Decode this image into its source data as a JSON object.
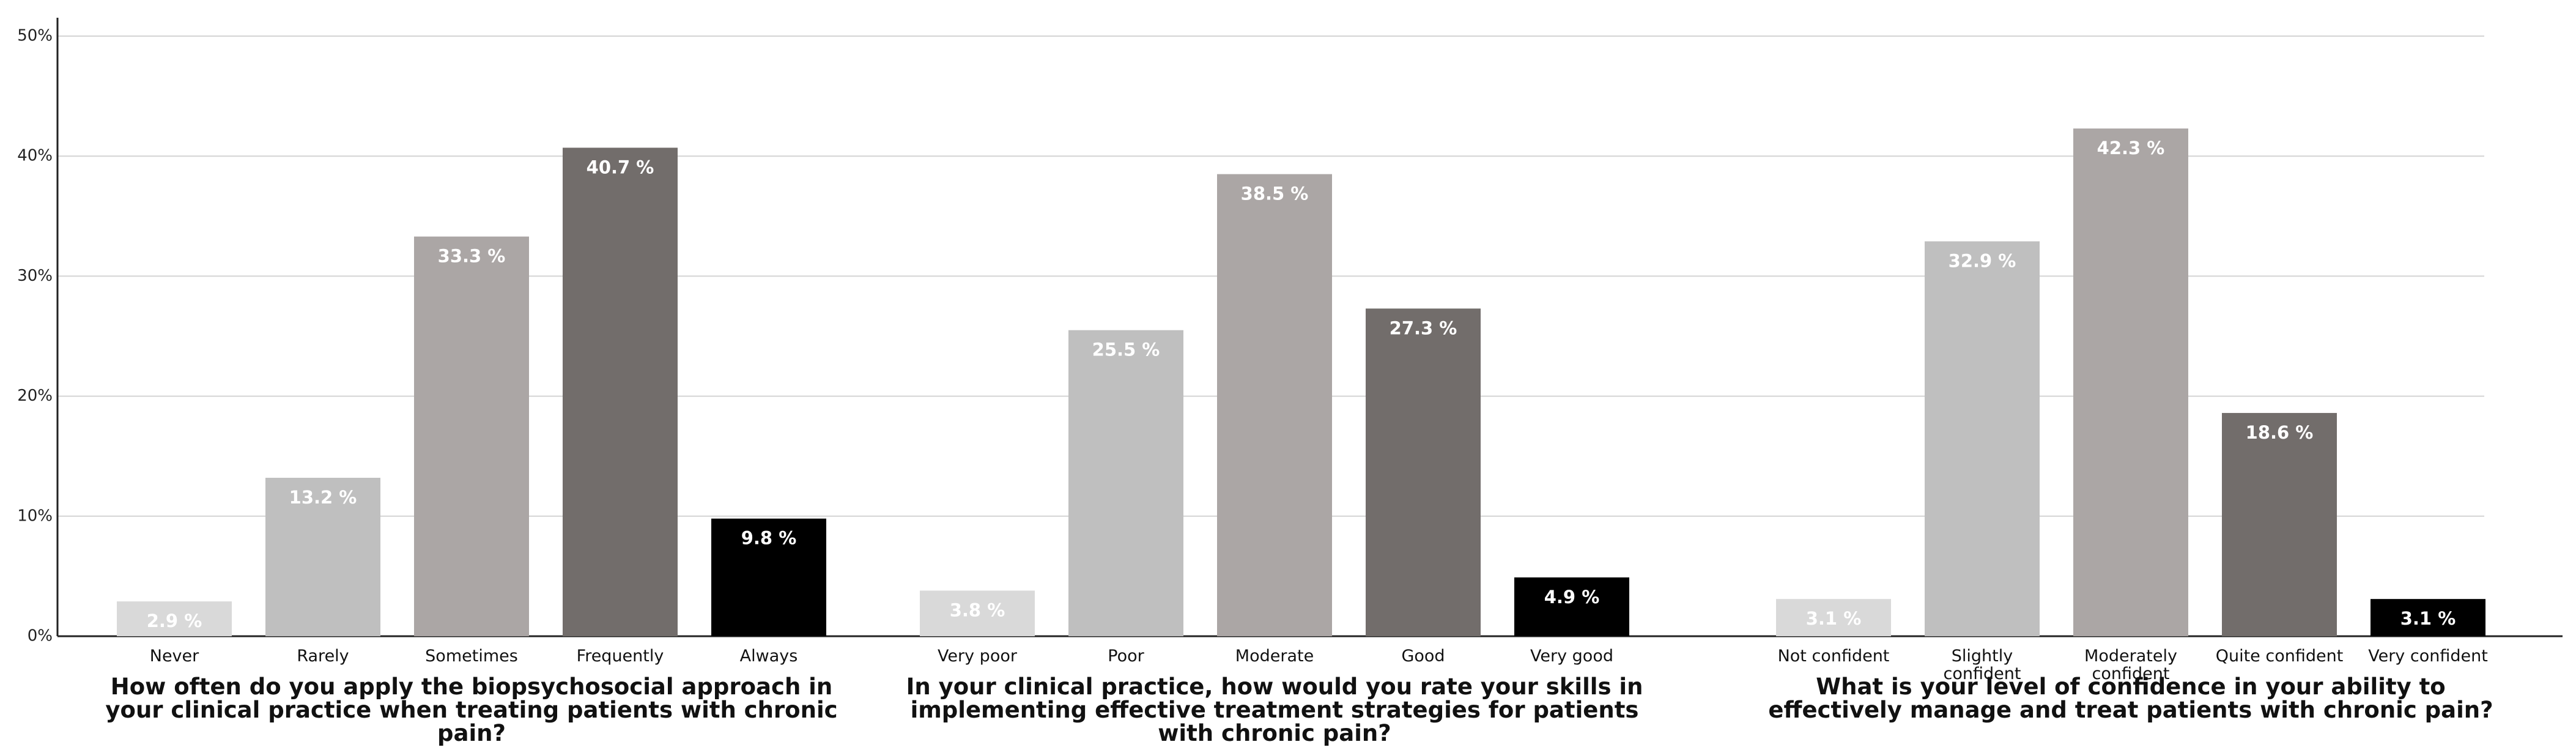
{
  "chart_data": {
    "type": "bar",
    "ylim": [
      0,
      50
    ],
    "yticks": [
      {
        "value": 0,
        "label": "0%"
      },
      {
        "value": 10,
        "label": "10%"
      },
      {
        "value": 20,
        "label": "20%"
      },
      {
        "value": 30,
        "label": "30%"
      },
      {
        "value": 40,
        "label": "40%"
      },
      {
        "value": 50,
        "label": "50%"
      }
    ],
    "grid": true,
    "groups": [
      {
        "title": "How often do you apply the biopsychosocial approach in your clinical practice when treating patients with chronic pain?",
        "categories": [
          "Never",
          "Rarely",
          "Sometimes",
          "Frequently",
          "Always"
        ],
        "values": [
          2.9,
          13.2,
          33.3,
          40.7,
          9.8
        ],
        "value_labels": [
          "2.9 %",
          "13.2 %",
          "33.3 %",
          "40.7 %",
          "9.8 %"
        ],
        "colors": [
          "#d9d9d9",
          "#bfbfbf",
          "#aba6a5",
          "#726d6b",
          "#000000"
        ]
      },
      {
        "title": "In your clinical practice, how would you rate your skills in implementing effective treatment strategies for patients with chronic pain?",
        "categories": [
          "Very poor",
          "Poor",
          "Moderate",
          "Good",
          "Very good"
        ],
        "values": [
          3.8,
          25.5,
          38.5,
          27.3,
          4.9
        ],
        "value_labels": [
          "3.8 %",
          "25.5 %",
          "38.5 %",
          "27.3 %",
          "4.9 %"
        ],
        "colors": [
          "#d9d9d9",
          "#bfbfbf",
          "#aba6a5",
          "#726d6b",
          "#000000"
        ]
      },
      {
        "title": "What is your level of confidence in your ability to effectively manage and treat patients with chronic pain?",
        "categories": [
          "Not confident",
          "Slightly confident",
          "Moderately confident",
          "Quite confident",
          "Very confident"
        ],
        "values": [
          3.1,
          32.9,
          42.3,
          18.6,
          3.1
        ],
        "value_labels": [
          "3.1 %",
          "32.9 %",
          "42.3 %",
          "18.6 %",
          "3.1 %"
        ],
        "colors": [
          "#d9d9d9",
          "#bfbfbf",
          "#aba6a5",
          "#726d6b",
          "#000000"
        ]
      }
    ]
  }
}
